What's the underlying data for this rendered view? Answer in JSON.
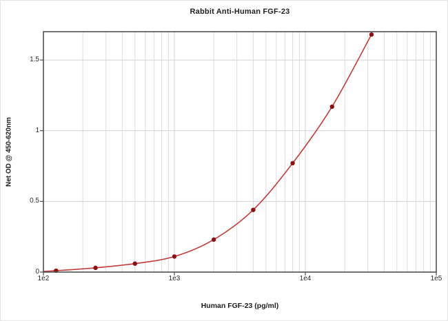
{
  "chart_data": {
    "type": "line",
    "title": "Rabbit Anti-Human FGF-23",
    "xlabel": "Human FGF-23 (pg/ml)",
    "ylabel": "Net OD @ 450-620nm",
    "x_scale": "log",
    "xlim": [
      100,
      100000
    ],
    "ylim": [
      0,
      1.7
    ],
    "grid": "vertical log minor lines; horizontal lines every 0.5",
    "legend_position": "none",
    "x_ticks": [
      {
        "value": 100,
        "label": "1e2"
      },
      {
        "value": 1000,
        "label": "1e3"
      },
      {
        "value": 10000,
        "label": "1e4"
      },
      {
        "value": 100000,
        "label": "1e5"
      }
    ],
    "y_ticks": [
      {
        "value": 0,
        "label": "0"
      },
      {
        "value": 0.5,
        "label": "0.5"
      },
      {
        "value": 1,
        "label": "1"
      },
      {
        "value": 1.5,
        "label": "1.5"
      }
    ],
    "series": [
      {
        "name": "standard curve",
        "points": [
          {
            "x": 125,
            "y": 0.01
          },
          {
            "x": 250,
            "y": 0.03
          },
          {
            "x": 500,
            "y": 0.06
          },
          {
            "x": 1000,
            "y": 0.11
          },
          {
            "x": 2000,
            "y": 0.23
          },
          {
            "x": 4000,
            "y": 0.44
          },
          {
            "x": 8000,
            "y": 0.77
          },
          {
            "x": 16000,
            "y": 1.17
          },
          {
            "x": 32000,
            "y": 1.68
          }
        ]
      }
    ],
    "curve_start": {
      "x": 100,
      "y": 0.005
    },
    "colors": {
      "line": "#c43b3b",
      "marker": "#8e1010",
      "grid_minor": "#dedede",
      "grid_major": "#d2d2d2",
      "frame": "#4f4f4f",
      "text": "#1f1f1f",
      "background": "#ffffff"
    }
  }
}
